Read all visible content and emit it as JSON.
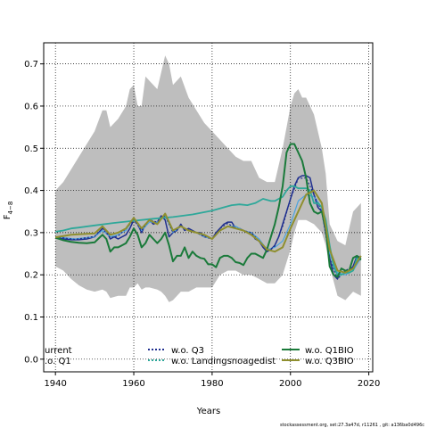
{
  "chart_data": {
    "type": "line",
    "xlabel": "Years",
    "ylabel": "F4-8",
    "ylabel_main": "F",
    "ylabel_sub": "4−8",
    "xlim": [
      1937,
      2021
    ],
    "ylim": [
      -0.03,
      0.75
    ],
    "xticks": [
      1940,
      1960,
      1980,
      2000,
      2020
    ],
    "yticks": [
      0.0,
      0.1,
      0.2,
      0.3,
      0.4,
      0.5,
      0.6,
      0.7
    ],
    "xtick_labels": [
      "1940",
      "1960",
      "1980",
      "2000",
      "2020"
    ],
    "ytick_labels": [
      "0.0",
      "0.1",
      "0.2",
      "0.3",
      "0.4",
      "0.5",
      "0.6",
      "0.7"
    ],
    "grid": true,
    "legend_position": "bottom",
    "legend": [
      {
        "label": "urrent",
        "color": "#1f2f8f",
        "style": "solid"
      },
      {
        "label": ".o. Q1",
        "color": "#4aa3df",
        "style": "solid"
      },
      {
        "label": "w.o. Q3",
        "color": "#1f2f8f",
        "style": "dotted"
      },
      {
        "label": "w.o. Landingsnoagedist",
        "color": "#2ea89a",
        "style": "dotted"
      },
      {
        "label": "w.o. Q1BIO",
        "color": "#1a7a3a",
        "style": "solid"
      },
      {
        "label": "w.o. Q3BIO",
        "color": "#8f8f2f",
        "style": "solid"
      }
    ],
    "band": {
      "color": "#bebebe",
      "x": [
        1940,
        1942,
        1944,
        1946,
        1948,
        1950,
        1952,
        1953,
        1954,
        1956,
        1958,
        1959,
        1960,
        1961,
        1962,
        1963,
        1964,
        1966,
        1967,
        1968,
        1969,
        1970,
        1972,
        1974,
        1976,
        1978,
        1980,
        1982,
        1984,
        1986,
        1988,
        1990,
        1992,
        1994,
        1996,
        1998,
        2000,
        2001,
        2002,
        2003,
        2004,
        2006,
        2008,
        2009,
        2010,
        2012,
        2014,
        2016,
        2018
      ],
      "lower": [
        0.22,
        0.21,
        0.19,
        0.175,
        0.165,
        0.16,
        0.165,
        0.16,
        0.145,
        0.15,
        0.15,
        0.17,
        0.17,
        0.18,
        0.165,
        0.17,
        0.17,
        0.165,
        0.16,
        0.15,
        0.135,
        0.14,
        0.16,
        0.16,
        0.17,
        0.17,
        0.17,
        0.2,
        0.21,
        0.21,
        0.2,
        0.2,
        0.19,
        0.18,
        0.18,
        0.2,
        0.26,
        0.3,
        0.33,
        0.33,
        0.33,
        0.32,
        0.3,
        0.27,
        0.22,
        0.15,
        0.14,
        0.16,
        0.15
      ],
      "upper": [
        0.4,
        0.42,
        0.45,
        0.48,
        0.51,
        0.54,
        0.59,
        0.59,
        0.55,
        0.57,
        0.6,
        0.64,
        0.65,
        0.6,
        0.6,
        0.67,
        0.66,
        0.64,
        0.68,
        0.72,
        0.7,
        0.65,
        0.67,
        0.62,
        0.59,
        0.56,
        0.54,
        0.52,
        0.5,
        0.48,
        0.47,
        0.47,
        0.43,
        0.42,
        0.42,
        0.5,
        0.6,
        0.63,
        0.64,
        0.62,
        0.62,
        0.58,
        0.5,
        0.44,
        0.32,
        0.28,
        0.27,
        0.35,
        0.37
      ]
    },
    "series": [
      {
        "name": "urrent",
        "color": "#1f2f8f",
        "width": 1.5,
        "dash": "",
        "x": [
          1940,
          1942,
          1944,
          1946,
          1948,
          1950,
          1951,
          1952,
          1953,
          1954,
          1955,
          1956,
          1957,
          1958,
          1959,
          1960,
          1961,
          1962,
          1963,
          1964,
          1965,
          1966,
          1967,
          1968,
          1969,
          1970,
          1971,
          1972,
          1973,
          1974,
          1975,
          1976,
          1977,
          1978,
          1979,
          1980,
          1981,
          1982,
          1983,
          1984,
          1985,
          1986,
          1987,
          1988,
          1989,
          1990,
          1991,
          1992,
          1993,
          1994,
          1995,
          1996,
          1997,
          1998,
          1999,
          2000,
          2001,
          2002,
          2003,
          2004,
          2005,
          2006,
          2007,
          2008,
          2009,
          2010,
          2011,
          2012,
          2013,
          2014,
          2015,
          2016,
          2017,
          2018
        ],
        "y": [
          0.29,
          0.285,
          0.283,
          0.283,
          0.285,
          0.29,
          0.3,
          0.31,
          0.305,
          0.285,
          0.29,
          0.285,
          0.29,
          0.295,
          0.31,
          0.33,
          0.32,
          0.3,
          0.32,
          0.33,
          0.32,
          0.325,
          0.34,
          0.33,
          0.29,
          0.3,
          0.305,
          0.32,
          0.305,
          0.31,
          0.305,
          0.3,
          0.3,
          0.29,
          0.29,
          0.285,
          0.3,
          0.31,
          0.32,
          0.325,
          0.325,
          0.31,
          0.31,
          0.305,
          0.3,
          0.3,
          0.285,
          0.28,
          0.265,
          0.255,
          0.26,
          0.27,
          0.29,
          0.32,
          0.35,
          0.38,
          0.41,
          0.43,
          0.435,
          0.435,
          0.43,
          0.39,
          0.36,
          0.35,
          0.3,
          0.24,
          0.2,
          0.19,
          0.215,
          0.21,
          0.21,
          0.22,
          0.245,
          0.24
        ]
      },
      {
        "name": ".o. Q1",
        "color": "#4aa3df",
        "width": 1.2,
        "dash": "",
        "x": [
          1940,
          1945,
          1950,
          1952,
          1954,
          1956,
          1958,
          1960,
          1962,
          1964,
          1966,
          1968,
          1970,
          1972,
          1974,
          1976,
          1978,
          1980,
          1982,
          1984,
          1986,
          1988,
          1990,
          1992,
          1994,
          1996,
          1998,
          2000,
          2002,
          2004,
          2006,
          2008,
          2010,
          2012,
          2014,
          2016,
          2018
        ],
        "y": [
          0.29,
          0.285,
          0.29,
          0.305,
          0.29,
          0.295,
          0.305,
          0.335,
          0.305,
          0.325,
          0.325,
          0.34,
          0.3,
          0.315,
          0.305,
          0.3,
          0.29,
          0.285,
          0.305,
          0.315,
          0.315,
          0.305,
          0.3,
          0.285,
          0.26,
          0.265,
          0.28,
          0.32,
          0.375,
          0.39,
          0.385,
          0.36,
          0.25,
          0.205,
          0.2,
          0.21,
          0.24
        ]
      },
      {
        "name": "w.o. Q3",
        "color": "#1f2f8f",
        "width": 1.2,
        "dash": "2,2",
        "x": [
          1940,
          1945,
          1950,
          1952,
          1954,
          1956,
          1958,
          1960,
          1962,
          1964,
          1966,
          1968,
          1970,
          1972,
          1974,
          1976,
          1978,
          1980,
          1982,
          1984,
          1986,
          1988,
          1990,
          1992,
          1994,
          1996,
          1998,
          2000,
          2002,
          2004,
          2006,
          2008,
          2010,
          2012,
          2014,
          2016,
          2018
        ],
        "y": [
          0.29,
          0.284,
          0.291,
          0.31,
          0.288,
          0.292,
          0.31,
          0.33,
          0.305,
          0.33,
          0.325,
          0.34,
          0.3,
          0.315,
          0.305,
          0.3,
          0.29,
          0.285,
          0.31,
          0.322,
          0.31,
          0.305,
          0.3,
          0.28,
          0.255,
          0.268,
          0.315,
          0.38,
          0.428,
          0.43,
          0.39,
          0.35,
          0.24,
          0.19,
          0.21,
          0.22,
          0.24
        ]
      },
      {
        "name": "w.o. Landingsnoagedist",
        "color": "#2ea89a",
        "width": 1.8,
        "dash": "",
        "x": [
          1940,
          1942,
          1944,
          1946,
          1950,
          1955,
          1960,
          1965,
          1970,
          1975,
          1980,
          1983,
          1985,
          1987,
          1989,
          1991,
          1993,
          1995,
          1996,
          1997,
          1998,
          1999,
          2000,
          2001,
          2002,
          2003,
          2004,
          2005,
          2006,
          2007,
          2008,
          2009,
          2010,
          2011,
          2012,
          2013,
          2014,
          2015,
          2016,
          2017,
          2018
        ],
        "y": [
          0.302,
          0.305,
          0.31,
          0.312,
          0.317,
          0.323,
          0.328,
          0.333,
          0.337,
          0.343,
          0.352,
          0.36,
          0.365,
          0.367,
          0.365,
          0.37,
          0.38,
          0.375,
          0.375,
          0.38,
          0.385,
          0.4,
          0.41,
          0.41,
          0.405,
          0.405,
          0.405,
          0.4,
          0.37,
          0.37,
          0.36,
          0.33,
          0.27,
          0.22,
          0.2,
          0.2,
          0.205,
          0.205,
          0.21,
          0.24,
          0.24
        ]
      },
      {
        "name": "w.o. Q1BIO",
        "color": "#1a7a3a",
        "width": 2.0,
        "dash": "",
        "x": [
          1940,
          1942,
          1944,
          1946,
          1948,
          1950,
          1951,
          1952,
          1953,
          1954,
          1955,
          1956,
          1957,
          1958,
          1959,
          1960,
          1961,
          1962,
          1963,
          1964,
          1965,
          1966,
          1967,
          1968,
          1969,
          1970,
          1971,
          1972,
          1973,
          1974,
          1975,
          1976,
          1977,
          1978,
          1979,
          1980,
          1981,
          1982,
          1983,
          1984,
          1985,
          1986,
          1987,
          1988,
          1989,
          1990,
          1991,
          1992,
          1993,
          1994,
          1995,
          1996,
          1997,
          1998,
          1999,
          2000,
          2001,
          2002,
          2003,
          2004,
          2005,
          2006,
          2007,
          2008,
          2009,
          2010,
          2011,
          2012,
          2013,
          2014,
          2015,
          2016,
          2017,
          2018
        ],
        "y": [
          0.288,
          0.282,
          0.278,
          0.276,
          0.275,
          0.277,
          0.286,
          0.295,
          0.285,
          0.255,
          0.265,
          0.265,
          0.27,
          0.275,
          0.29,
          0.31,
          0.295,
          0.265,
          0.275,
          0.295,
          0.285,
          0.275,
          0.285,
          0.3,
          0.27,
          0.232,
          0.245,
          0.245,
          0.265,
          0.24,
          0.255,
          0.245,
          0.24,
          0.238,
          0.225,
          0.225,
          0.218,
          0.24,
          0.245,
          0.245,
          0.24,
          0.23,
          0.228,
          0.223,
          0.24,
          0.25,
          0.25,
          0.245,
          0.24,
          0.26,
          0.29,
          0.32,
          0.36,
          0.41,
          0.49,
          0.51,
          0.51,
          0.49,
          0.47,
          0.43,
          0.37,
          0.35,
          0.345,
          0.35,
          0.31,
          0.22,
          0.2,
          0.195,
          0.215,
          0.21,
          0.21,
          0.24,
          0.245,
          0.235
        ]
      },
      {
        "name": "w.o. Q3BIO",
        "color": "#8f8f2f",
        "width": 2.0,
        "dash": "",
        "x": [
          1940,
          1942,
          1944,
          1946,
          1948,
          1950,
          1952,
          1954,
          1956,
          1958,
          1960,
          1962,
          1964,
          1966,
          1968,
          1970,
          1972,
          1974,
          1976,
          1978,
          1980,
          1982,
          1984,
          1986,
          1988,
          1990,
          1992,
          1994,
          1996,
          1998,
          2000,
          2002,
          2004,
          2006,
          2008,
          2010,
          2012,
          2014,
          2016,
          2018
        ],
        "y": [
          0.289,
          0.292,
          0.295,
          0.296,
          0.297,
          0.298,
          0.315,
          0.295,
          0.3,
          0.31,
          0.335,
          0.31,
          0.33,
          0.32,
          0.345,
          0.305,
          0.315,
          0.305,
          0.3,
          0.295,
          0.285,
          0.305,
          0.315,
          0.31,
          0.305,
          0.295,
          0.28,
          0.26,
          0.255,
          0.265,
          0.31,
          0.35,
          0.39,
          0.4,
          0.37,
          0.26,
          0.21,
          0.205,
          0.215,
          0.245
        ]
      }
    ],
    "footnote": "stockassessment.org, set:27.3a47d, r11261 , git: a136ba0d496c"
  }
}
